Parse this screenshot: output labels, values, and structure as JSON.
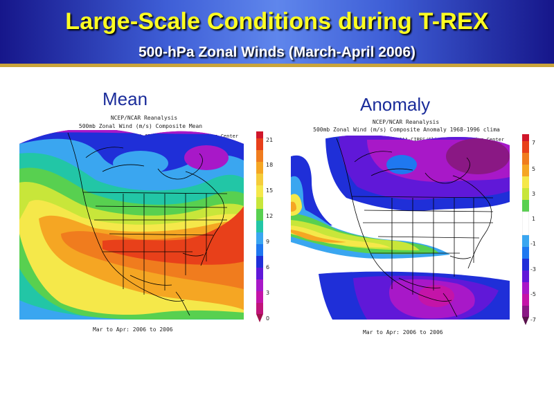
{
  "header": {
    "title": "Large-Scale Conditions during T-REX",
    "subtitle": "500-hPa Zonal Winds (March-April 2006)"
  },
  "panels": [
    {
      "heading": "Mean",
      "caption_line1": "NCEP/NCAR Reanalysis",
      "caption_line2": "500mb Zonal Wind (m/s) Composite Mean",
      "credit": "NOAA-CIRES/Climate Diagnostics Center",
      "footer": "Mar to Apr: 2006 to 2006",
      "colorbar_ticks": [
        "21",
        "18",
        "15",
        "12",
        "9",
        "6",
        "3",
        "0"
      ]
    },
    {
      "heading": "Anomaly",
      "caption_line1": "NCEP/NCAR Reanalysis",
      "caption_line2": "500mb Zonal Wind (m/s) Composite Anomaly 1968-1996 clima",
      "credit": "NOAA-CIRES/Climate Diagnostics Center",
      "footer": "Mar to Apr: 2006 to 2006",
      "colorbar_ticks": [
        "7",
        "5",
        "3",
        "1",
        "-1",
        "-3",
        "-5",
        "-7"
      ]
    }
  ],
  "colors": {
    "header_dark": "#16168a",
    "header_light": "#5f86ec",
    "title": "#ffff22",
    "heading": "#1a2c9a"
  }
}
